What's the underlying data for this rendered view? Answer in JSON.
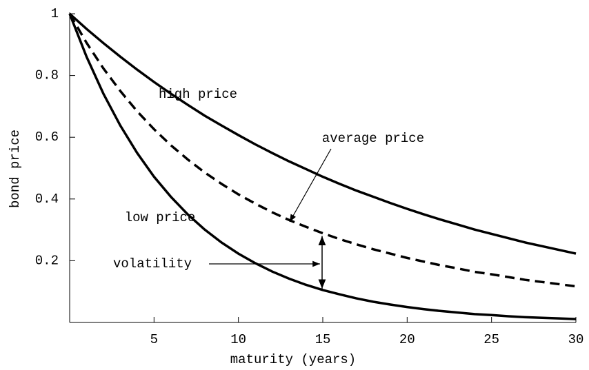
{
  "chart_data": {
    "type": "line",
    "xlabel": "maturity (years)",
    "ylabel": "bond price",
    "x": [
      0,
      1,
      2,
      3,
      4,
      5,
      6,
      7,
      8,
      9,
      10,
      11,
      12,
      13,
      14,
      15,
      16,
      17,
      18,
      19,
      20,
      21,
      22,
      23,
      24,
      25,
      26,
      27,
      28,
      29,
      30
    ],
    "series": [
      {
        "name": "high price",
        "color": "#000000",
        "dash": false,
        "values": [
          1,
          0.951,
          0.905,
          0.861,
          0.819,
          0.779,
          0.741,
          0.705,
          0.67,
          0.638,
          0.607,
          0.577,
          0.549,
          0.522,
          0.497,
          0.472,
          0.449,
          0.427,
          0.407,
          0.387,
          0.368,
          0.35,
          0.333,
          0.317,
          0.301,
          0.287,
          0.273,
          0.259,
          0.247,
          0.235,
          0.223
        ]
      },
      {
        "name": "average price",
        "color": "#000000",
        "dash": true,
        "values": [
          1,
          0.906,
          0.823,
          0.75,
          0.684,
          0.626,
          0.574,
          0.528,
          0.486,
          0.449,
          0.415,
          0.385,
          0.357,
          0.332,
          0.31,
          0.289,
          0.27,
          0.253,
          0.237,
          0.223,
          0.209,
          0.197,
          0.185,
          0.175,
          0.164,
          0.156,
          0.147,
          0.138,
          0.131,
          0.124,
          0.117
        ]
      },
      {
        "name": "low price",
        "color": "#000000",
        "dash": false,
        "values": [
          1,
          0.861,
          0.741,
          0.638,
          0.549,
          0.472,
          0.407,
          0.35,
          0.301,
          0.259,
          0.223,
          0.192,
          0.165,
          0.142,
          0.122,
          0.105,
          0.091,
          0.078,
          0.067,
          0.058,
          0.05,
          0.043,
          0.037,
          0.032,
          0.027,
          0.024,
          0.02,
          0.017,
          0.015,
          0.013,
          0.011
        ]
      }
    ],
    "annotations": [
      "volatility"
    ],
    "xlim": [
      0,
      30
    ],
    "ylim": [
      0,
      1
    ],
    "xticks": [
      5,
      10,
      15,
      20,
      25,
      30
    ],
    "yticks": [
      0.2,
      0.4,
      0.6,
      0.8,
      1
    ],
    "grid": false
  }
}
